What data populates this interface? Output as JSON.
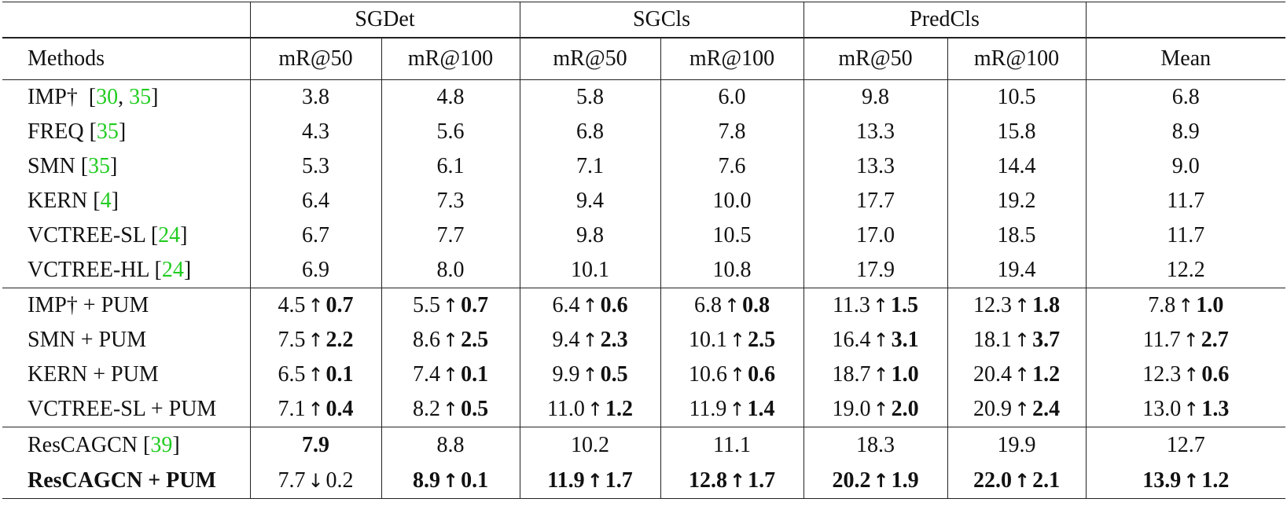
{
  "groups": [
    "SGDet",
    "SGCls",
    "PredCls"
  ],
  "columns": [
    "Methods",
    "mR@50",
    "mR@100",
    "mR@50",
    "mR@100",
    "mR@50",
    "mR@100",
    "Mean"
  ],
  "baseline_rows": [
    {
      "method": "IMP†",
      "cites": [
        "30",
        "35"
      ],
      "values": [
        "3.8",
        "4.8",
        "5.8",
        "6.0",
        "9.8",
        "10.5",
        "6.8"
      ]
    },
    {
      "method": "FREQ",
      "cites": [
        "35"
      ],
      "values": [
        "4.3",
        "5.6",
        "6.8",
        "7.8",
        "13.3",
        "15.8",
        "8.9"
      ]
    },
    {
      "method": "SMN",
      "cites": [
        "35"
      ],
      "values": [
        "5.3",
        "6.1",
        "7.1",
        "7.6",
        "13.3",
        "14.4",
        "9.0"
      ]
    },
    {
      "method": "KERN",
      "cites": [
        "4"
      ],
      "values": [
        "6.4",
        "7.3",
        "9.4",
        "10.0",
        "17.7",
        "19.2",
        "11.7"
      ]
    },
    {
      "method": "VCTREE-SL",
      "cites": [
        "24"
      ],
      "values": [
        "6.7",
        "7.7",
        "9.8",
        "10.5",
        "17.0",
        "18.5",
        "11.7"
      ]
    },
    {
      "method": "VCTREE-HL",
      "cites": [
        "24"
      ],
      "values": [
        "6.9",
        "8.0",
        "10.1",
        "10.8",
        "17.9",
        "19.4",
        "12.2"
      ]
    }
  ],
  "pum_rows": [
    {
      "method": "IMP† + PUM",
      "values": [
        {
          "v": "4.5",
          "arrow": "↑",
          "d": "0.7"
        },
        {
          "v": "5.5",
          "arrow": "↑",
          "d": "0.7"
        },
        {
          "v": "6.4",
          "arrow": "↑",
          "d": "0.6"
        },
        {
          "v": "6.8",
          "arrow": "↑",
          "d": "0.8"
        },
        {
          "v": "11.3",
          "arrow": "↑",
          "d": "1.5"
        },
        {
          "v": "12.3",
          "arrow": "↑",
          "d": "1.8"
        },
        {
          "v": "7.8",
          "arrow": "↑",
          "d": "1.0"
        }
      ]
    },
    {
      "method": "SMN + PUM",
      "values": [
        {
          "v": "7.5",
          "arrow": "↑",
          "d": "2.2"
        },
        {
          "v": "8.6",
          "arrow": "↑",
          "d": "2.5"
        },
        {
          "v": "9.4",
          "arrow": "↑",
          "d": "2.3"
        },
        {
          "v": "10.1",
          "arrow": "↑",
          "d": "2.5"
        },
        {
          "v": "16.4",
          "arrow": "↑",
          "d": "3.1"
        },
        {
          "v": "18.1",
          "arrow": "↑",
          "d": "3.7"
        },
        {
          "v": "11.7",
          "arrow": "↑",
          "d": "2.7"
        }
      ]
    },
    {
      "method": "KERN + PUM",
      "values": [
        {
          "v": "6.5",
          "arrow": "↑",
          "d": "0.1"
        },
        {
          "v": "7.4",
          "arrow": "↑",
          "d": "0.1"
        },
        {
          "v": "9.9",
          "arrow": "↑",
          "d": "0.5"
        },
        {
          "v": "10.6",
          "arrow": "↑",
          "d": "0.6"
        },
        {
          "v": "18.7",
          "arrow": "↑",
          "d": "1.0"
        },
        {
          "v": "20.4",
          "arrow": "↑",
          "d": "1.2"
        },
        {
          "v": "12.3",
          "arrow": "↑",
          "d": "0.6"
        }
      ]
    },
    {
      "method": "VCTREE-SL + PUM",
      "values": [
        {
          "v": "7.1",
          "arrow": "↑",
          "d": "0.4"
        },
        {
          "v": "8.2",
          "arrow": "↑",
          "d": "0.5"
        },
        {
          "v": "11.0",
          "arrow": "↑",
          "d": "1.2"
        },
        {
          "v": "11.9",
          "arrow": "↑",
          "d": "1.4"
        },
        {
          "v": "19.0",
          "arrow": "↑",
          "d": "2.0"
        },
        {
          "v": "20.9",
          "arrow": "↑",
          "d": "2.4"
        },
        {
          "v": "13.0",
          "arrow": "↑",
          "d": "1.3"
        }
      ]
    }
  ],
  "rescagcn": {
    "method": "ResCAGCN",
    "cites": [
      "39"
    ],
    "values": [
      "7.9",
      "8.8",
      "10.2",
      "11.1",
      "18.3",
      "19.9",
      "12.7"
    ]
  },
  "rescagcn_pum": {
    "method": "ResCAGCN + PUM",
    "values": [
      {
        "v": "7.7",
        "arrow": "↓",
        "d": "0.2"
      },
      {
        "v": "8.9",
        "arrow": "↑",
        "d": "0.1"
      },
      {
        "v": "11.9",
        "arrow": "↑",
        "d": "1.7"
      },
      {
        "v": "12.8",
        "arrow": "↑",
        "d": "1.7"
      },
      {
        "v": "20.2",
        "arrow": "↑",
        "d": "1.9"
      },
      {
        "v": "22.0",
        "arrow": "↑",
        "d": "2.1"
      },
      {
        "v": "13.9",
        "arrow": "↑",
        "d": "1.2"
      }
    ]
  },
  "colors": {
    "citation": "#22cc22",
    "rule": "#222222",
    "text": "#111111"
  }
}
